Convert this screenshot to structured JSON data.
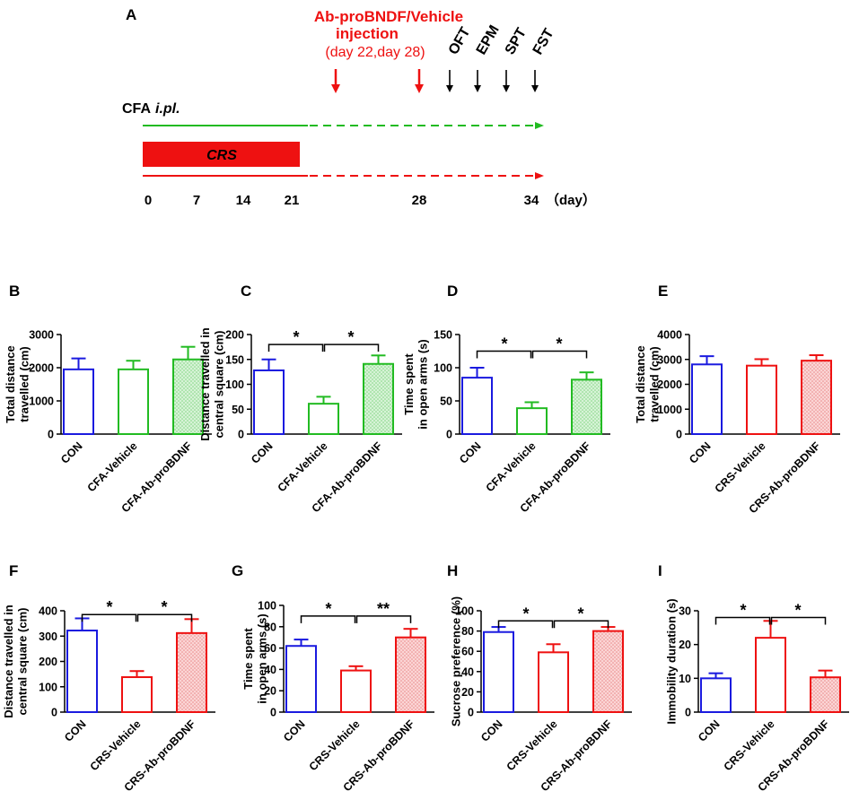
{
  "colors": {
    "blue": "#1a1adf",
    "green": "#22bb22",
    "red": "#ee1111",
    "black": "#000000",
    "red_fill": "#f6b3b3",
    "green_fill": "#b6ebb6"
  },
  "timeline": {
    "panel_label": "A",
    "injection_title_1": "Ab-proBNDF/Vehicle",
    "injection_title_2": "injection",
    "injection_days": "(day 22,day 28)",
    "tests": [
      "OFT",
      "EPM",
      "SPT",
      "FST"
    ],
    "cfa_label": "CFA",
    "cfa_suffix": "i.pl.",
    "crs_label": "CRS",
    "ticks": [
      "0",
      "7",
      "14",
      "21",
      "28",
      "34"
    ],
    "unit": "（day）"
  },
  "chart_data": [
    {
      "panel": "B",
      "type": "bar",
      "categories": [
        "CON",
        "CFA-Vehicle",
        "CFA-Ab-proBDNF"
      ],
      "values": [
        1950,
        1950,
        2250
      ],
      "errors": [
        330,
        260,
        380
      ],
      "ylabel": [
        "Total distance",
        "travelled (cm)"
      ],
      "ylim": [
        0,
        3000
      ],
      "yticks": [
        0,
        1000,
        2000,
        3000
      ],
      "colors": [
        "blue",
        "green",
        "green"
      ],
      "fills": [
        null,
        null,
        "green_fill"
      ],
      "sig": []
    },
    {
      "panel": "C",
      "type": "bar",
      "categories": [
        "CON",
        "CFA-Vehicle",
        "CFA-Ab-proBDNF"
      ],
      "values": [
        128,
        61,
        141
      ],
      "errors": [
        22,
        14,
        17
      ],
      "ylabel": [
        "Distance travelled in",
        "central square (cm)"
      ],
      "ylim": [
        0,
        200
      ],
      "yticks": [
        0,
        50,
        100,
        150,
        200
      ],
      "colors": [
        "blue",
        "green",
        "green"
      ],
      "fills": [
        null,
        null,
        "green_fill"
      ],
      "sig": [
        {
          "from": 0,
          "to": 1,
          "label": "*",
          "level": 180
        },
        {
          "from": 1,
          "to": 2,
          "label": "*",
          "level": 180
        }
      ]
    },
    {
      "panel": "D",
      "type": "bar",
      "categories": [
        "CON",
        "CFA-Vehicle",
        "CFA-Ab-proBDNF"
      ],
      "values": [
        85,
        39,
        82
      ],
      "errors": [
        15,
        9,
        11
      ],
      "ylabel": [
        "Time spent",
        "in open arms (s)"
      ],
      "ylim": [
        0,
        150
      ],
      "yticks": [
        0,
        50,
        100,
        150
      ],
      "colors": [
        "blue",
        "green",
        "green"
      ],
      "fills": [
        null,
        null,
        "green_fill"
      ],
      "sig": [
        {
          "from": 0,
          "to": 1,
          "label": "*",
          "level": 125
        },
        {
          "from": 1,
          "to": 2,
          "label": "*",
          "level": 125
        }
      ]
    },
    {
      "panel": "E",
      "type": "bar",
      "categories": [
        "CON",
        "CRS-Vehicle",
        "CRS-Ab-proBDNF"
      ],
      "values": [
        2800,
        2750,
        2950
      ],
      "errors": [
        330,
        260,
        220
      ],
      "ylabel": [
        "Total distance",
        "travelled (cm)"
      ],
      "ylim": [
        0,
        4000
      ],
      "yticks": [
        0,
        1000,
        2000,
        3000,
        4000
      ],
      "colors": [
        "blue",
        "red",
        "red"
      ],
      "fills": [
        null,
        null,
        "red_fill"
      ],
      "sig": []
    },
    {
      "panel": "F",
      "type": "bar",
      "categories": [
        "CON",
        "CRS-Vehicle",
        "CRS-Ab-proBDNF"
      ],
      "values": [
        322,
        138,
        312
      ],
      "errors": [
        48,
        24,
        55
      ],
      "ylabel": [
        "Distance travelled in",
        "central square (cm)"
      ],
      "ylim": [
        0,
        400
      ],
      "yticks": [
        0,
        100,
        200,
        300,
        400
      ],
      "colors": [
        "blue",
        "red",
        "red"
      ],
      "fills": [
        null,
        null,
        "red_fill"
      ],
      "sig": [
        {
          "from": 0,
          "to": 1,
          "label": "*",
          "level": 385
        },
        {
          "from": 1,
          "to": 2,
          "label": "*",
          "level": 385
        }
      ]
    },
    {
      "panel": "G",
      "type": "bar",
      "categories": [
        "CON",
        "CRS-Vehicle",
        "CRS-Ab-proBDNF"
      ],
      "values": [
        62,
        39,
        70
      ],
      "errors": [
        6,
        4,
        8
      ],
      "ylabel": [
        "Time spent",
        "in open arms (s)"
      ],
      "ylim": [
        0,
        100
      ],
      "yticks": [
        0,
        20,
        40,
        60,
        80,
        100
      ],
      "colors": [
        "blue",
        "red",
        "red"
      ],
      "fills": [
        null,
        null,
        "red_fill"
      ],
      "sig": [
        {
          "from": 0,
          "to": 1,
          "label": "*",
          "level": 90
        },
        {
          "from": 1,
          "to": 2,
          "label": "**",
          "level": 90
        }
      ]
    },
    {
      "panel": "H",
      "type": "bar",
      "categories": [
        "CON",
        "CRS-Vehicle",
        "CRS-Ab-proBDNF"
      ],
      "values": [
        79,
        59,
        80
      ],
      "errors": [
        5,
        8,
        4
      ],
      "ylabel": [
        "Sucrose preference (%)"
      ],
      "ylim": [
        0,
        100
      ],
      "yticks": [
        0,
        20,
        40,
        60,
        80,
        100
      ],
      "colors": [
        "blue",
        "red",
        "red"
      ],
      "fills": [
        null,
        null,
        "red_fill"
      ],
      "sig": [
        {
          "from": 0,
          "to": 1,
          "label": "*",
          "level": 90
        },
        {
          "from": 1,
          "to": 2,
          "label": "*",
          "level": 90
        }
      ]
    },
    {
      "panel": "I",
      "type": "bar",
      "categories": [
        "CON",
        "CRS-Vehicle",
        "CRS-Ab-proBDNF"
      ],
      "values": [
        10,
        22,
        10.3
      ],
      "errors": [
        1.5,
        5,
        2
      ],
      "ylabel": [
        "Immobility duration (s)"
      ],
      "ylim": [
        0,
        30
      ],
      "yticks": [
        0,
        10,
        20,
        30
      ],
      "colors": [
        "blue",
        "red",
        "red"
      ],
      "fills": [
        null,
        null,
        "red_fill"
      ],
      "sig": [
        {
          "from": 0,
          "to": 1,
          "label": "*",
          "level": 28
        },
        {
          "from": 1,
          "to": 2,
          "label": "*",
          "level": 28
        }
      ]
    }
  ]
}
